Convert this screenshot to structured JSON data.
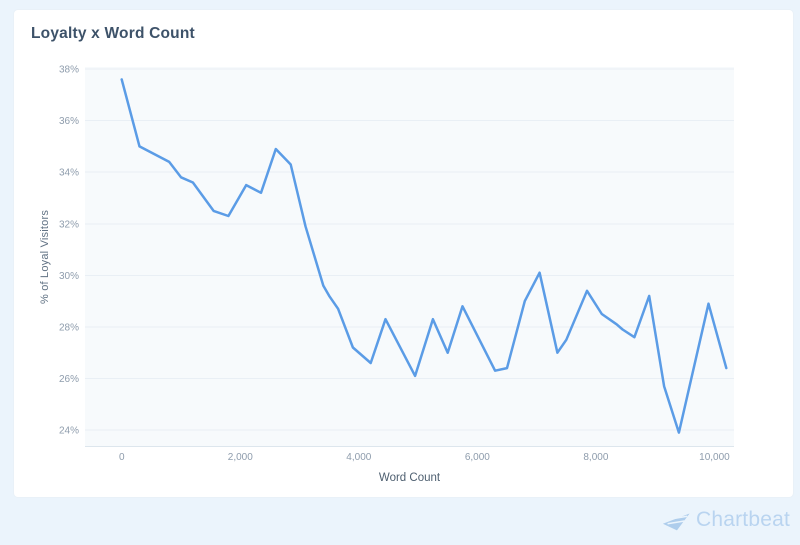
{
  "chart_data": {
    "type": "line",
    "title": "Loyalty x Word Count",
    "xlabel": "Word Count",
    "ylabel": "% of Loyal Visitors",
    "legend": "none",
    "grid": "horizontal",
    "xlim": [
      -620,
      10330
    ],
    "ylim": [
      23.38,
      38.08
    ],
    "x_ticks": [
      0,
      2000,
      4000,
      6000,
      8000,
      10000
    ],
    "x_tick_labels": [
      "0",
      "2,000",
      "4,000",
      "6,000",
      "8,000",
      "10,000"
    ],
    "y_ticks": [
      24,
      26,
      28,
      30,
      32,
      34,
      36,
      38
    ],
    "y_tick_labels": [
      "24%",
      "26%",
      "28%",
      "30%",
      "32%",
      "34%",
      "36%",
      "38%"
    ],
    "line_color": "#5b9ce6",
    "plot_background": "#f7fafc",
    "grid_color": "#e9eff5",
    "axis_line_color": "#dde6ed",
    "tick_label_color": "#8e9cac",
    "series": [
      {
        "name": "% of Loyal Visitors",
        "points": [
          [
            0,
            37.6
          ],
          [
            300,
            35.0
          ],
          [
            800,
            34.4
          ],
          [
            1000,
            33.8
          ],
          [
            1200,
            33.6
          ],
          [
            1550,
            32.5
          ],
          [
            1800,
            32.3
          ],
          [
            2100,
            33.5
          ],
          [
            2350,
            33.2
          ],
          [
            2600,
            34.9
          ],
          [
            2850,
            34.3
          ],
          [
            3100,
            31.9
          ],
          [
            3400,
            29.6
          ],
          [
            3500,
            29.2
          ],
          [
            3650,
            28.7
          ],
          [
            3900,
            27.2
          ],
          [
            4200,
            26.6
          ],
          [
            4450,
            28.3
          ],
          [
            4950,
            26.1
          ],
          [
            5250,
            28.3
          ],
          [
            5500,
            27.0
          ],
          [
            5750,
            28.8
          ],
          [
            6300,
            26.3
          ],
          [
            6500,
            26.4
          ],
          [
            6800,
            29.0
          ],
          [
            7050,
            30.1
          ],
          [
            7350,
            27.0
          ],
          [
            7500,
            27.5
          ],
          [
            7850,
            29.4
          ],
          [
            8100,
            28.5
          ],
          [
            8350,
            28.1
          ],
          [
            8450,
            27.9
          ],
          [
            8650,
            27.6
          ],
          [
            8900,
            29.2
          ],
          [
            9150,
            25.7
          ],
          [
            9400,
            23.9
          ],
          [
            9900,
            28.9
          ],
          [
            10200,
            26.4
          ]
        ]
      }
    ]
  },
  "footer": {
    "brand": "Chartbeat",
    "brand_color": "#b9d4f0",
    "icon_color": "#aecdec"
  },
  "colors": {
    "page_background": "#ebf4fc",
    "card_background": "#ffffff",
    "title_color": "#3d5269"
  }
}
